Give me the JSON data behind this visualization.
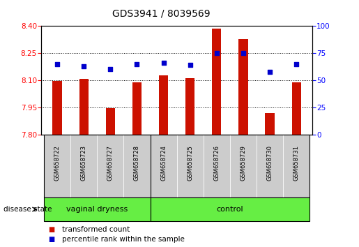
{
  "title": "GDS3941 / 8039569",
  "samples": [
    "GSM658722",
    "GSM658723",
    "GSM658727",
    "GSM658728",
    "GSM658724",
    "GSM658725",
    "GSM658726",
    "GSM658729",
    "GSM658730",
    "GSM658731"
  ],
  "red_values": [
    8.095,
    8.107,
    7.947,
    8.088,
    8.127,
    8.112,
    8.385,
    8.327,
    7.918,
    8.088
  ],
  "blue_values": [
    65,
    63,
    60,
    65,
    66,
    64,
    75,
    75,
    58,
    65
  ],
  "groups": [
    {
      "label": "vaginal dryness",
      "start": 0,
      "end": 4
    },
    {
      "label": "control",
      "start": 4,
      "end": 10
    }
  ],
  "ylim_left": [
    7.8,
    8.4
  ],
  "ylim_right": [
    0,
    100
  ],
  "yticks_left": [
    7.8,
    7.95,
    8.1,
    8.25,
    8.4
  ],
  "yticks_right": [
    0,
    25,
    50,
    75,
    100
  ],
  "grid_values": [
    7.95,
    8.1,
    8.25
  ],
  "bar_color": "#cc1100",
  "dot_color": "#0000cc",
  "group_bg_color": "#66ee44",
  "sample_bg_color": "#cccccc",
  "legend_red_label": "transformed count",
  "legend_blue_label": "percentile rank within the sample",
  "disease_state_label": "disease state",
  "bar_width": 0.35,
  "fig_width": 5.15,
  "fig_height": 3.54,
  "dpi": 100
}
